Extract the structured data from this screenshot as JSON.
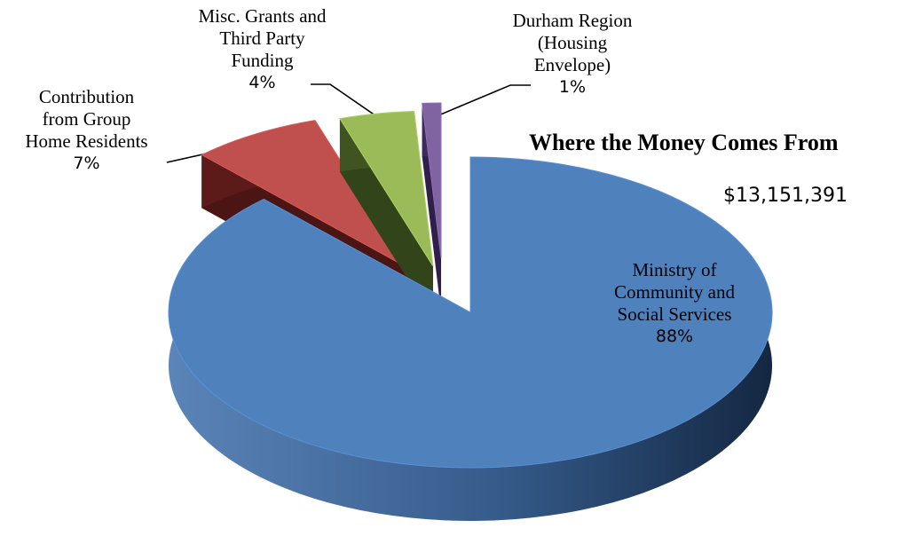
{
  "chart_data": {
    "type": "pie",
    "title": "Where the Money Comes From",
    "subtitle": "$13,151,391",
    "slices": [
      {
        "label_lines": [
          "Ministry of",
          "Community and",
          "Social Services"
        ],
        "percent_label": "88%",
        "value": 88,
        "color": "#4f81bd"
      },
      {
        "label_lines": [
          "Contribution",
          "from Group",
          "Home Residents"
        ],
        "percent_label": "7%",
        "value": 7,
        "color": "#c0504d"
      },
      {
        "label_lines": [
          "Misc. Grants and",
          "Third Party",
          "Funding"
        ],
        "percent_label": "4%",
        "value": 4,
        "color": "#9bbb59"
      },
      {
        "label_lines": [
          "Durham Region",
          "(Housing",
          "Envelope)"
        ],
        "percent_label": "1%",
        "value": 1,
        "color": "#8064a2"
      }
    ]
  }
}
